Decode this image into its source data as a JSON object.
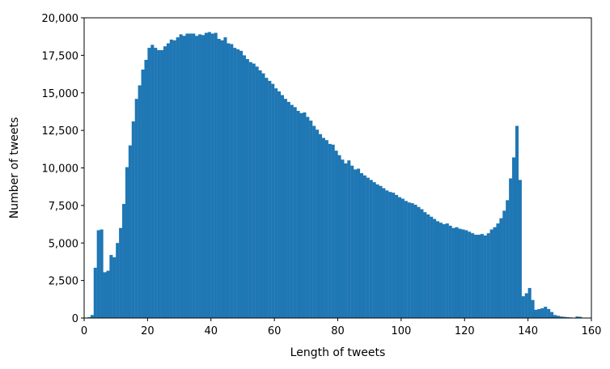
{
  "chart_data": {
    "type": "bar",
    "title": "",
    "xlabel": "Length of tweets",
    "ylabel": "Number of tweets",
    "xlim": [
      0,
      160
    ],
    "ylim": [
      0,
      20000
    ],
    "bin_start": 1,
    "bin_width": 1,
    "bar_color": "#1f77b4",
    "grid": false,
    "x_ticks": [
      0,
      20,
      40,
      60,
      80,
      100,
      120,
      140,
      160
    ],
    "x_tick_labels": [
      "0",
      "20",
      "40",
      "60",
      "80",
      "100",
      "120",
      "140",
      "160"
    ],
    "y_ticks": [
      0,
      2500,
      5000,
      7500,
      10000,
      12500,
      15000,
      17500,
      20000
    ],
    "y_tick_labels": [
      "0",
      "2,500",
      "5,000",
      "7,500",
      "10,000",
      "12,500",
      "15,000",
      "17,500",
      "20,000"
    ],
    "values": [
      50,
      200,
      3350,
      5850,
      5900,
      3050,
      3150,
      4200,
      4050,
      5000,
      6000,
      7600,
      10050,
      11500,
      13100,
      14600,
      15500,
      16550,
      17200,
      18000,
      18200,
      18000,
      17850,
      17850,
      18100,
      18300,
      18550,
      18500,
      18700,
      18900,
      18800,
      18950,
      18950,
      18950,
      18800,
      18900,
      18850,
      19000,
      19050,
      18950,
      19000,
      18600,
      18500,
      18700,
      18300,
      18250,
      18000,
      17900,
      17800,
      17500,
      17250,
      17050,
      16950,
      16750,
      16500,
      16300,
      16000,
      15800,
      15600,
      15300,
      15100,
      14850,
      14600,
      14400,
      14200,
      14050,
      13800,
      13650,
      13700,
      13400,
      13150,
      12800,
      12550,
      12250,
      12000,
      11850,
      11600,
      11550,
      11150,
      10850,
      10550,
      10300,
      10500,
      10150,
      9900,
      9950,
      9650,
      9500,
      9350,
      9200,
      9050,
      8900,
      8800,
      8650,
      8500,
      8400,
      8350,
      8200,
      8050,
      7950,
      7800,
      7700,
      7650,
      7550,
      7400,
      7250,
      7050,
      6900,
      6750,
      6600,
      6450,
      6350,
      6250,
      6300,
      6150,
      6000,
      6050,
      5950,
      5900,
      5850,
      5750,
      5650,
      5550,
      5550,
      5600,
      5500,
      5650,
      5900,
      6050,
      6300,
      6650,
      7150,
      7850,
      9300,
      10700,
      12800,
      9200,
      1450,
      1650,
      2000,
      1200,
      550,
      600,
      650,
      750,
      600,
      400,
      200,
      150,
      100,
      80,
      60,
      40,
      20,
      100,
      80,
      20
    ]
  }
}
